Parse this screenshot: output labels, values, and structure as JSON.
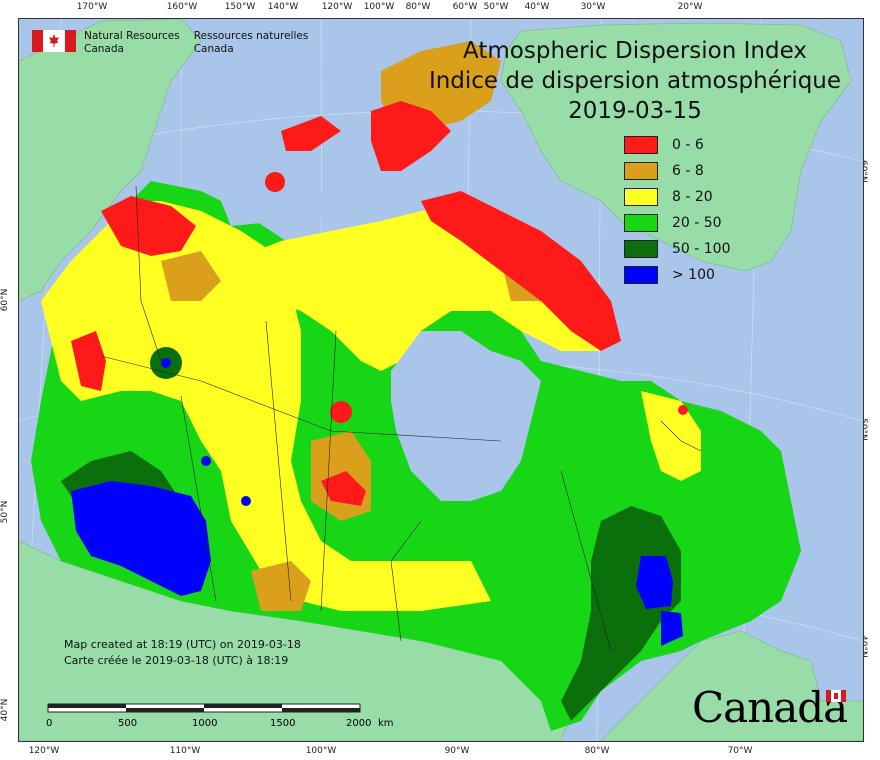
{
  "title": {
    "english": "Atmospheric Dispersion Index",
    "french": "Indice de dispersion atmosphérique",
    "date": "2019-03-15"
  },
  "agency": {
    "english_line1": "Natural Resources",
    "english_line2": "Canada",
    "french_line1": "Ressources naturelles",
    "french_line2": "Canada"
  },
  "legend": [
    {
      "label": "0 - 6",
      "color": "#ff1a1a"
    },
    {
      "label": "6 - 8",
      "color": "#daa01c"
    },
    {
      "label": "8 - 20",
      "color": "#ffff22"
    },
    {
      "label": "20 - 50",
      "color": "#16d616"
    },
    {
      "label": "50 - 100",
      "color": "#0b700b"
    },
    {
      "label": "> 100",
      "color": "#0000ff"
    }
  ],
  "credit": {
    "english": "Map created at 18:19 (UTC) on 2019-03-18",
    "french": "Carte créée le 2019-03-18 (UTC) à 18:19"
  },
  "scale": {
    "labels": [
      "0",
      "500",
      "1000",
      "1500",
      "2000"
    ],
    "unit": "km"
  },
  "wordmark": "Canada",
  "graticule": {
    "top": [
      "170°W",
      "160°W",
      "150°W",
      "140°W",
      "120°W",
      "100°W",
      "80°W",
      "60°W",
      "50°W",
      "40°W",
      "30°W",
      "20°W"
    ],
    "bottom": [
      "120°W",
      "110°W",
      "100°W",
      "90°W",
      "80°W",
      "70°W"
    ],
    "left": [
      "60°N",
      "50°N",
      "40°N"
    ],
    "right": [
      "60°N",
      "50°N",
      "40°N"
    ]
  },
  "colors": {
    "water": "#a9c6ea",
    "other_land": "#98dca8",
    "boundary": "#222222"
  }
}
